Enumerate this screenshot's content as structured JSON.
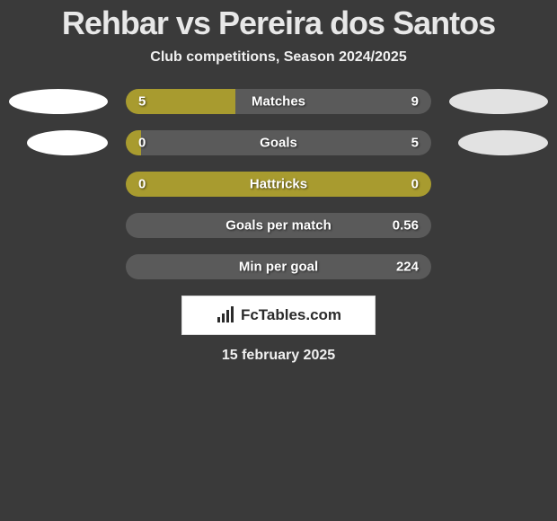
{
  "title": "Rehbar vs Pereira dos Santos",
  "subtitle": "Club competitions, Season 2024/2025",
  "date": "15 february 2025",
  "logo_text": "FcTables.com",
  "colors": {
    "background": "#3a3a3a",
    "bar_left": "#a89b2f",
    "bar_right": "#5a5a5a",
    "ellipse_left": "#ffffff",
    "ellipse_right": "#e2e2e2",
    "text": "#ffffff"
  },
  "stats": [
    {
      "label": "Matches",
      "left_val": "5",
      "right_val": "9",
      "left_pct": 36,
      "show_ellipses": true
    },
    {
      "label": "Goals",
      "left_val": "0",
      "right_val": "5",
      "left_pct": 5,
      "show_ellipses": true
    },
    {
      "label": "Hattricks",
      "left_val": "0",
      "right_val": "0",
      "left_pct": 100,
      "show_ellipses": false
    },
    {
      "label": "Goals per match",
      "left_val": "",
      "right_val": "0.56",
      "left_pct": 0,
      "show_ellipses": false
    },
    {
      "label": "Min per goal",
      "left_val": "",
      "right_val": "224",
      "left_pct": 0,
      "show_ellipses": false
    }
  ]
}
